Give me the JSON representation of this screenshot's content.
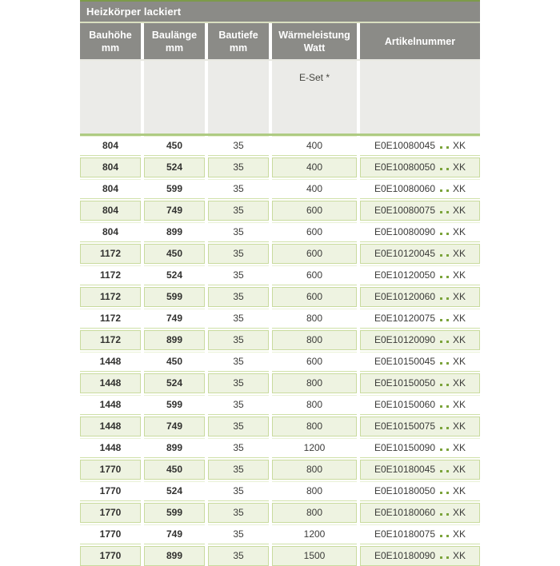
{
  "table": {
    "title": "Heizkörper lackiert",
    "columns": [
      {
        "label": "Bauhöhe",
        "unit": "mm"
      },
      {
        "label": "Baulänge",
        "unit": "mm"
      },
      {
        "label": "Bautiefe",
        "unit": "mm"
      },
      {
        "label": "Wärmeleistung",
        "unit": "Watt"
      },
      {
        "label": "Artikelnummer",
        "unit": ""
      }
    ],
    "subheader_label": "E-Set *",
    "artikel_suffix": "XK",
    "rows": [
      {
        "bauhoehe": "804",
        "baulaenge": "450",
        "bautiefe": "35",
        "watt": "400",
        "artikel": "E0E10080045"
      },
      {
        "bauhoehe": "804",
        "baulaenge": "524",
        "bautiefe": "35",
        "watt": "400",
        "artikel": "E0E10080050"
      },
      {
        "bauhoehe": "804",
        "baulaenge": "599",
        "bautiefe": "35",
        "watt": "400",
        "artikel": "E0E10080060"
      },
      {
        "bauhoehe": "804",
        "baulaenge": "749",
        "bautiefe": "35",
        "watt": "600",
        "artikel": "E0E10080075"
      },
      {
        "bauhoehe": "804",
        "baulaenge": "899",
        "bautiefe": "35",
        "watt": "600",
        "artikel": "E0E10080090"
      },
      {
        "bauhoehe": "1172",
        "baulaenge": "450",
        "bautiefe": "35",
        "watt": "600",
        "artikel": "E0E10120045"
      },
      {
        "bauhoehe": "1172",
        "baulaenge": "524",
        "bautiefe": "35",
        "watt": "600",
        "artikel": "E0E10120050"
      },
      {
        "bauhoehe": "1172",
        "baulaenge": "599",
        "bautiefe": "35",
        "watt": "600",
        "artikel": "E0E10120060"
      },
      {
        "bauhoehe": "1172",
        "baulaenge": "749",
        "bautiefe": "35",
        "watt": "800",
        "artikel": "E0E10120075"
      },
      {
        "bauhoehe": "1172",
        "baulaenge": "899",
        "bautiefe": "35",
        "watt": "800",
        "artikel": "E0E10120090"
      },
      {
        "bauhoehe": "1448",
        "baulaenge": "450",
        "bautiefe": "35",
        "watt": "600",
        "artikel": "E0E10150045"
      },
      {
        "bauhoehe": "1448",
        "baulaenge": "524",
        "bautiefe": "35",
        "watt": "800",
        "artikel": "E0E10150050"
      },
      {
        "bauhoehe": "1448",
        "baulaenge": "599",
        "bautiefe": "35",
        "watt": "800",
        "artikel": "E0E10150060"
      },
      {
        "bauhoehe": "1448",
        "baulaenge": "749",
        "bautiefe": "35",
        "watt": "800",
        "artikel": "E0E10150075"
      },
      {
        "bauhoehe": "1448",
        "baulaenge": "899",
        "bautiefe": "35",
        "watt": "1200",
        "artikel": "E0E10150090"
      },
      {
        "bauhoehe": "1770",
        "baulaenge": "450",
        "bautiefe": "35",
        "watt": "800",
        "artikel": "E0E10180045"
      },
      {
        "bauhoehe": "1770",
        "baulaenge": "524",
        "bautiefe": "35",
        "watt": "800",
        "artikel": "E0E10180050"
      },
      {
        "bauhoehe": "1770",
        "baulaenge": "599",
        "bautiefe": "35",
        "watt": "800",
        "artikel": "E0E10180060"
      },
      {
        "bauhoehe": "1770",
        "baulaenge": "749",
        "bautiefe": "35",
        "watt": "1200",
        "artikel": "E0E10180075"
      },
      {
        "bauhoehe": "1770",
        "baulaenge": "899",
        "bautiefe": "35",
        "watt": "1500",
        "artikel": "E0E10180090"
      }
    ]
  },
  "colors": {
    "header_gray": "#8b8b87",
    "top_accent_green": "#7d9a4a",
    "separator_green": "#aecb82",
    "shaded_row_green": "#eef3e1",
    "row_border_green": "#c9db9e",
    "dot_green": "#7ba33b",
    "subheader_gray": "#ebebe8",
    "text_dark": "#3b3b39",
    "header_text": "#ffffff"
  }
}
